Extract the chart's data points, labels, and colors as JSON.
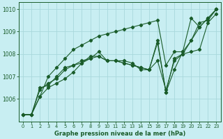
{
  "title": "Graphe pression niveau de la mer (hPa)",
  "bg_color": "#c8eef2",
  "grid_color": "#a8d8dc",
  "line_color": "#1a5c2a",
  "x": [
    0,
    1,
    2,
    3,
    4,
    5,
    6,
    7,
    8,
    9,
    10,
    11,
    12,
    13,
    14,
    15,
    16,
    17,
    18,
    19,
    20,
    21,
    22,
    23
  ],
  "series": [
    [
      1005.3,
      1005.3,
      1006.1,
      1006.5,
      1006.7,
      1006.9,
      1007.2,
      1007.6,
      1007.8,
      1007.9,
      1007.7,
      1007.7,
      1007.6,
      1007.5,
      1007.4,
      1007.3,
      1007.7,
      1006.4,
      1007.7,
      1008.0,
      1008.1,
      1008.2,
      1009.4,
      1009.8
    ],
    [
      1005.3,
      1005.3,
      1006.5,
      1006.6,
      1007.0,
      1007.4,
      1007.5,
      1007.7,
      1007.8,
      1008.1,
      1007.7,
      1007.7,
      1007.6,
      1007.5,
      1007.4,
      1007.3,
      1008.6,
      1006.3,
      1007.8,
      1008.0,
      1008.6,
      1009.2,
      1009.6,
      1010.0
    ],
    [
      1005.3,
      1005.3,
      1006.4,
      1006.7,
      1006.9,
      1007.3,
      1007.5,
      1007.6,
      1007.9,
      1007.9,
      1007.7,
      1007.7,
      1007.7,
      1007.6,
      1007.3,
      1007.3,
      1008.5,
      1006.3,
      1007.3,
      1008.1,
      1008.6,
      1009.4,
      1009.5,
      1010.0
    ],
    [
      1005.3,
      1005.3,
      1006.1,
      1007.0,
      1007.4,
      1007.8,
      1008.2,
      1008.4,
      1008.6,
      1008.8,
      1008.9,
      1009.0,
      1009.1,
      1009.2,
      1009.3,
      1009.4,
      1009.5,
      1007.5,
      1008.1,
      1008.1,
      1009.6,
      1009.2,
      1009.6,
      1010.0
    ]
  ],
  "ylim": [
    1005.0,
    1010.3
  ],
  "yticks": [
    1006,
    1007,
    1008,
    1009,
    1010
  ],
  "xticks": [
    0,
    1,
    2,
    3,
    4,
    5,
    6,
    7,
    8,
    9,
    10,
    11,
    12,
    13,
    14,
    15,
    16,
    17,
    18,
    19,
    20,
    21,
    22,
    23
  ],
  "figsize": [
    3.2,
    2.0
  ],
  "dpi": 100
}
